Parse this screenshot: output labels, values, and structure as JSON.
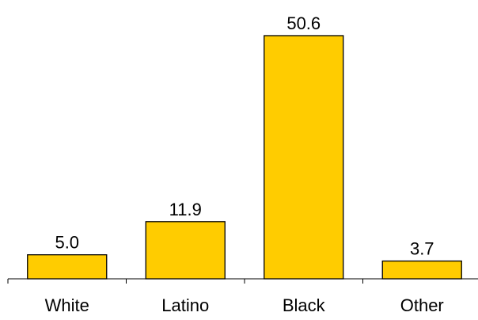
{
  "chart_data": {
    "type": "bar",
    "categories": [
      "White",
      "Latino",
      "Black",
      "Other"
    ],
    "values": [
      5.0,
      11.9,
      50.6,
      3.7
    ],
    "value_labels": [
      "5.0",
      "11.9",
      "50.6",
      "3.7"
    ],
    "bar_color": "#FFCC00",
    "bar_outline_color": "#000000",
    "ylim": [
      0,
      52
    ],
    "grid": false,
    "legend": "none"
  }
}
